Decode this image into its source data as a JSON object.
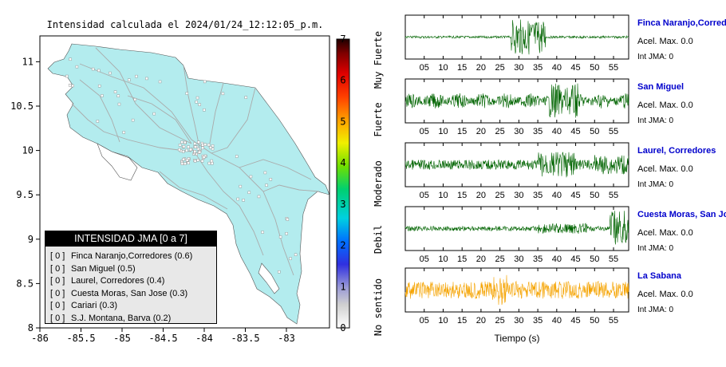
{
  "map": {
    "title": "Intensidad calculada el 2024/01/24_12:12:05_p.m.",
    "lon_ticks": [
      "-86",
      "-85.5",
      "-85",
      "-84.5",
      "-84",
      "-83.5",
      "-83"
    ],
    "lat_ticks": [
      "8",
      "8.5",
      "9",
      "9.5",
      "10",
      "10.5",
      "11"
    ],
    "land_color": "#b3ecee",
    "legend": {
      "title": "INTENSIDAD JMA [0 a 7]",
      "items": [
        {
          "level": "[ 0 ]",
          "name": "Finca Naranjo,Corredores (0.6)"
        },
        {
          "level": "[ 0 ]",
          "name": "San Miguel (0.5)"
        },
        {
          "level": "[ 0 ]",
          "name": "Laurel, Corredores (0.4)"
        },
        {
          "level": "[ 0 ]",
          "name": "Cuesta Moras, San Jose (0.3)"
        },
        {
          "level": "[ 0 ]",
          "name": "Cariari (0.3)"
        },
        {
          "level": "[ 0 ]",
          "name": "S.J. Montana, Barva (0.2)"
        }
      ]
    }
  },
  "colorbar": {
    "ticks": [
      "0",
      "1",
      "2",
      "3",
      "4",
      "5",
      "6",
      "7"
    ],
    "labels": [
      "No sentido",
      "Debil",
      "Moderado",
      "Fuerte",
      "Muy Fuerte"
    ]
  },
  "chart_data": {
    "type": "line",
    "xlabel": "Tiempo (s)",
    "x_ticks": [
      "05",
      "10",
      "15",
      "20",
      "25",
      "30",
      "35",
      "40",
      "45",
      "50",
      "55"
    ],
    "xlim": [
      0,
      59
    ],
    "traces": [
      {
        "station": "Finca Naranjo,Corredores",
        "accel_label": "Acel. Max. 0.0",
        "int_label": "Int JMA: 0",
        "color": "#006400"
      },
      {
        "station": "San Miguel",
        "accel_label": "Acel. Max. 0.0",
        "int_label": "Int JMA: 0",
        "color": "#006400"
      },
      {
        "station": "Laurel, Corredores",
        "accel_label": "Acel. Max. 0.0",
        "int_label": "Int JMA: 0",
        "color": "#006400"
      },
      {
        "station": "Cuesta Moras, San Jose",
        "accel_label": "Acel. Max. 0.0",
        "int_label": "Int JMA: 0",
        "color": "#006400"
      },
      {
        "station": "La Sabana",
        "accel_label": "Acel. Max. 0.0",
        "int_label": "Int JMA: 0",
        "color": "#f5a300"
      }
    ],
    "station_color": "#0000cc"
  }
}
